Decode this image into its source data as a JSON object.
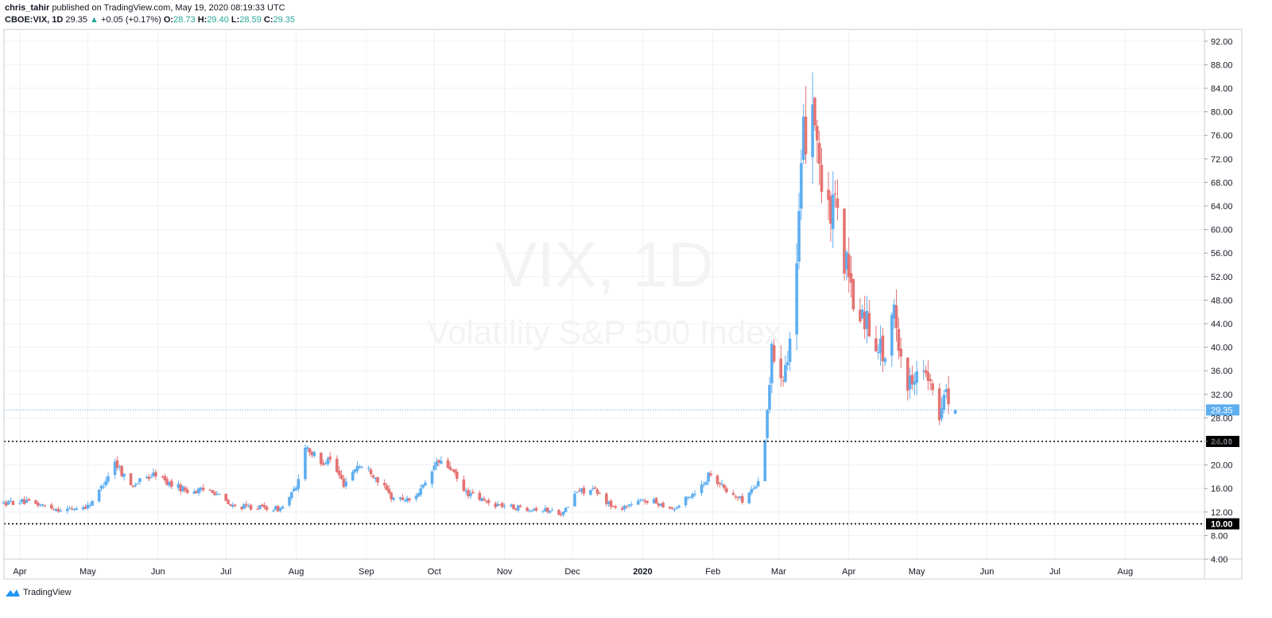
{
  "header": {
    "author": "chris_tahir",
    "published_text": "published on TradingView.com, May 19, 2020 08:19:33 UTC",
    "symbol": "CBOE:VIX, 1D",
    "last": "29.35",
    "change": "+0.05 (+0.17%)",
    "o_label": "O:",
    "o_value": "28.73",
    "h_label": "H:",
    "h_value": "29.40",
    "l_label": "L:",
    "l_value": "28.59",
    "c_label": "C:",
    "c_value": "29.35"
  },
  "footer": {
    "brand": "TradingView"
  },
  "colors": {
    "up": "#5eaef0",
    "down": "#e57373",
    "grid": "#eef0f3",
    "price_line": "#5eaef0",
    "level_line": "#000000"
  },
  "chart_data": {
    "type": "candlestick",
    "watermark_symbol": "VIX, 1D",
    "watermark_name": "Volatility S&P 500 Index",
    "y_axis": {
      "min": 4,
      "max": 94,
      "ticks": [
        4,
        8,
        12,
        16,
        20,
        24,
        28,
        32,
        36,
        40,
        44,
        48,
        52,
        56,
        60,
        64,
        68,
        72,
        76,
        80,
        84,
        88,
        92
      ],
      "scale": "linear",
      "side": "right"
    },
    "x_axis": {
      "start": "2019-03-25",
      "end": "2020-09-05",
      "labels": [
        {
          "date": "2019-04-01",
          "text": "Apr"
        },
        {
          "date": "2019-05-01",
          "text": "May"
        },
        {
          "date": "2019-06-01",
          "text": "Jun"
        },
        {
          "date": "2019-07-01",
          "text": "Jul"
        },
        {
          "date": "2019-08-01",
          "text": "Aug"
        },
        {
          "date": "2019-09-01",
          "text": "Sep"
        },
        {
          "date": "2019-10-01",
          "text": "Oct"
        },
        {
          "date": "2019-11-01",
          "text": "Nov"
        },
        {
          "date": "2019-12-01",
          "text": "Dec"
        },
        {
          "date": "2020-01-01",
          "text": "2020"
        },
        {
          "date": "2020-02-01",
          "text": "Feb"
        },
        {
          "date": "2020-03-01",
          "text": "Mar"
        },
        {
          "date": "2020-04-01",
          "text": "Apr"
        },
        {
          "date": "2020-05-01",
          "text": "May"
        },
        {
          "date": "2020-06-01",
          "text": "Jun"
        },
        {
          "date": "2020-07-01",
          "text": "Jul"
        },
        {
          "date": "2020-08-01",
          "text": "Aug"
        }
      ]
    },
    "grid": true,
    "current_price": {
      "value": 29.35,
      "label": "29.35"
    },
    "levels": [
      {
        "value": 24.0,
        "label": "24.00"
      },
      {
        "value": 10.0,
        "label": "10.00"
      }
    ],
    "keypoints": [
      [
        "2019-03-25",
        13.5
      ],
      [
        "2019-04-01",
        13.8
      ],
      [
        "2019-04-10",
        13.2
      ],
      [
        "2019-04-20",
        12.3
      ],
      [
        "2019-05-01",
        13.0
      ],
      [
        "2019-05-06",
        15.5
      ],
      [
        "2019-05-13",
        20.5
      ],
      [
        "2019-05-20",
        16.5
      ],
      [
        "2019-05-31",
        18.5
      ],
      [
        "2019-06-05",
        17.0
      ],
      [
        "2019-06-15",
        15.5
      ],
      [
        "2019-06-25",
        15.8
      ],
      [
        "2019-07-03",
        13.0
      ],
      [
        "2019-07-15",
        12.8
      ],
      [
        "2019-07-25",
        12.5
      ],
      [
        "2019-08-01",
        16.0
      ],
      [
        "2019-08-05",
        23.5
      ],
      [
        "2019-08-12",
        20.0
      ],
      [
        "2019-08-15",
        21.5
      ],
      [
        "2019-08-22",
        16.8
      ],
      [
        "2019-08-28",
        20.0
      ],
      [
        "2019-09-03",
        19.0
      ],
      [
        "2019-09-12",
        14.5
      ],
      [
        "2019-09-20",
        14.0
      ],
      [
        "2019-09-27",
        16.5
      ],
      [
        "2019-10-02",
        20.5
      ],
      [
        "2019-10-08",
        19.5
      ],
      [
        "2019-10-14",
        15.5
      ],
      [
        "2019-10-25",
        13.5
      ],
      [
        "2019-11-05",
        12.8
      ],
      [
        "2019-11-15",
        12.6
      ],
      [
        "2019-11-27",
        11.8
      ],
      [
        "2019-12-03",
        15.5
      ],
      [
        "2019-12-10",
        15.8
      ],
      [
        "2019-12-20",
        12.5
      ],
      [
        "2019-12-31",
        13.8
      ],
      [
        "2020-01-03",
        14.0
      ],
      [
        "2020-01-08",
        13.5
      ],
      [
        "2020-01-15",
        12.5
      ],
      [
        "2020-01-27",
        16.5
      ],
      [
        "2020-01-31",
        18.8
      ],
      [
        "2020-02-07",
        15.5
      ],
      [
        "2020-02-14",
        14.0
      ],
      [
        "2020-02-21",
        17.0
      ],
      [
        "2020-02-24",
        25.0
      ],
      [
        "2020-02-27",
        39.0
      ],
      [
        "2020-03-03",
        36.0
      ],
      [
        "2020-03-06",
        41.5
      ],
      [
        "2020-03-09",
        54.0
      ],
      [
        "2020-03-12",
        75.0
      ],
      [
        "2020-03-16",
        82.5
      ],
      [
        "2020-03-18",
        76.5
      ],
      [
        "2020-03-20",
        66.0
      ],
      [
        "2020-03-23",
        62.0
      ],
      [
        "2020-03-26",
        63.0
      ],
      [
        "2020-03-31",
        53.5
      ],
      [
        "2020-04-03",
        46.5
      ],
      [
        "2020-04-07",
        46.0
      ],
      [
        "2020-04-13",
        41.5
      ],
      [
        "2020-04-17",
        38.2
      ],
      [
        "2020-04-21",
        45.5
      ],
      [
        "2020-04-27",
        33.0
      ],
      [
        "2020-05-01",
        37.2
      ],
      [
        "2020-05-06",
        34.2
      ],
      [
        "2020-05-11",
        27.6
      ],
      [
        "2020-05-13",
        33.5
      ],
      [
        "2020-05-15",
        31.9
      ],
      [
        "2020-05-18",
        29.35
      ]
    ]
  }
}
